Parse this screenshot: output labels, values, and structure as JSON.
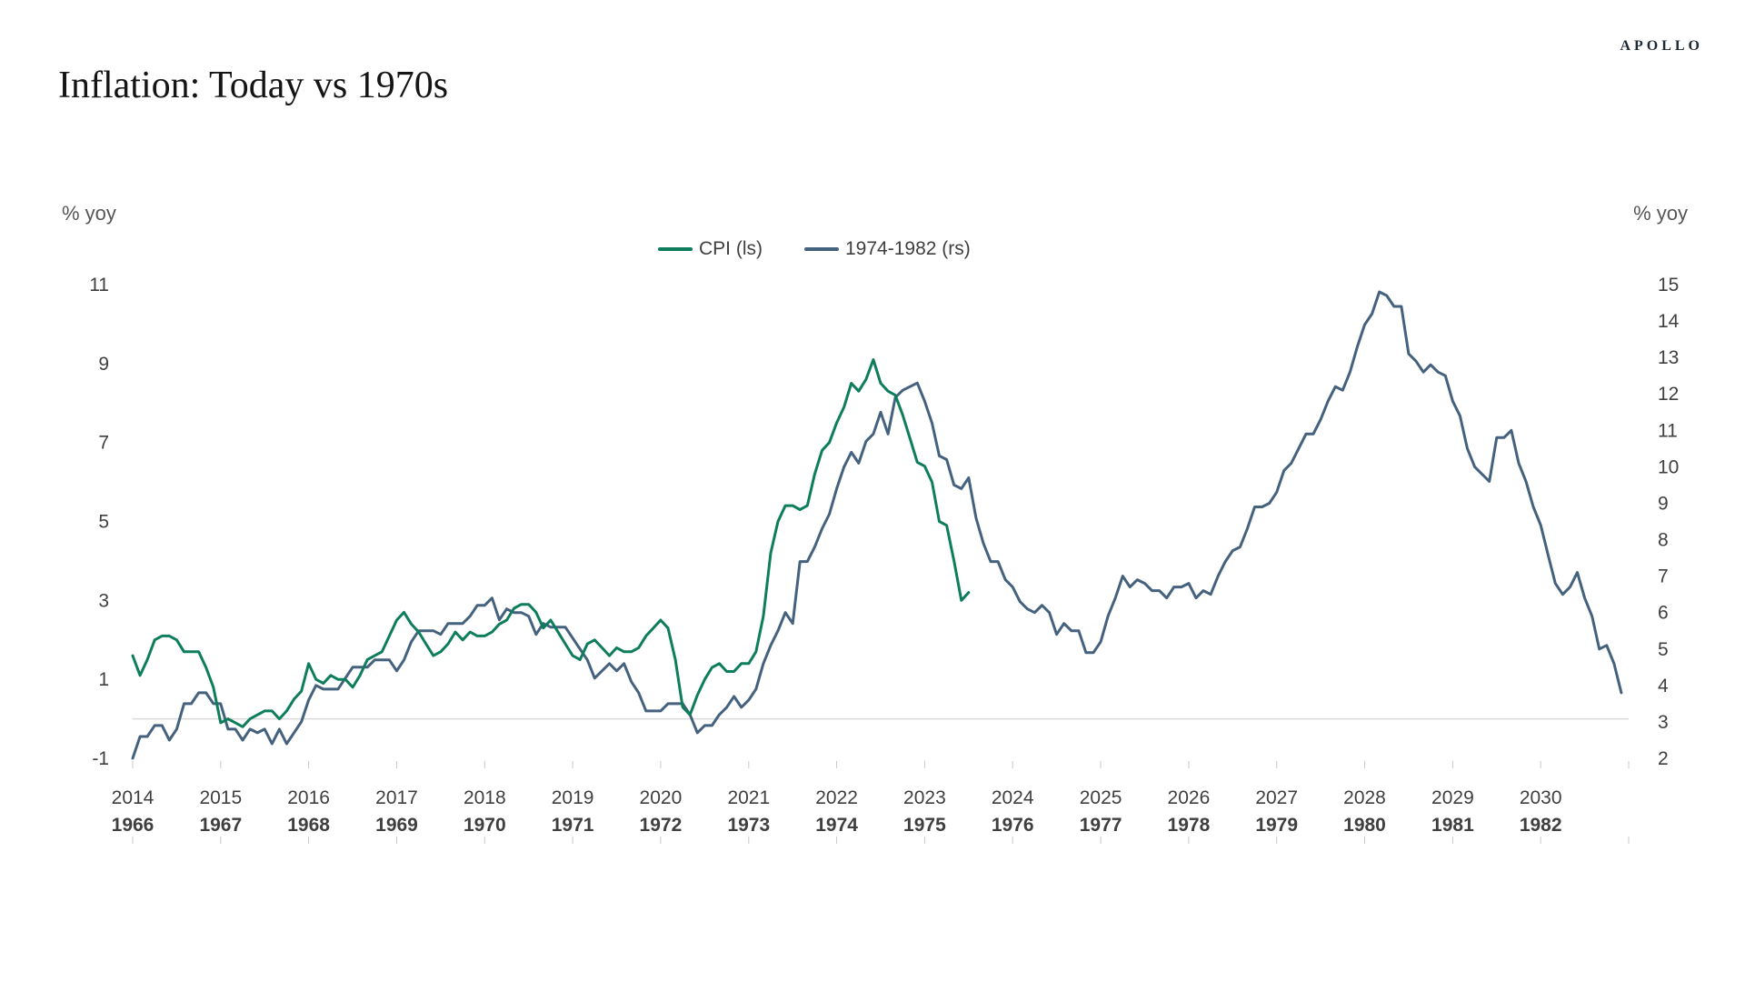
{
  "page": {
    "brand": "APOLLO",
    "title": "Inflation: Today vs 1970s"
  },
  "chart_data": {
    "type": "line",
    "title": "Inflation: Today vs 1970s",
    "grid": "off",
    "legend_position": "top-center",
    "left_axis": {
      "label": "% yoy",
      "min": -1,
      "max": 11,
      "ticks": [
        11,
        9,
        7,
        5,
        3,
        1,
        -1
      ]
    },
    "right_axis": {
      "label": "% yoy",
      "min": 2,
      "max": 15,
      "ticks": [
        15,
        14,
        13,
        12,
        11,
        10,
        9,
        8,
        7,
        6,
        5,
        4,
        3,
        2
      ]
    },
    "x_axis": {
      "span_years": 17,
      "primary_labels": [
        "2014",
        "2015",
        "2016",
        "2017",
        "2018",
        "2019",
        "2020",
        "2021",
        "2022",
        "2023",
        "2024",
        "2025",
        "2026",
        "2027",
        "2028",
        "2029",
        "2030"
      ],
      "secondary_labels": [
        "1966",
        "1967",
        "1968",
        "1969",
        "1970",
        "1971",
        "1972",
        "1973",
        "1974",
        "1975",
        "1976",
        "1977",
        "1978",
        "1979",
        "1980",
        "1981",
        "1982"
      ]
    },
    "series": [
      {
        "name": "CPI (ls)",
        "axis": "left",
        "color": "#0e7d5c",
        "start_year_offset": 0,
        "points_per_year": 12,
        "start_label": "2014-01",
        "values": [
          1.6,
          1.1,
          1.5,
          2.0,
          2.1,
          2.1,
          2.0,
          1.7,
          1.7,
          1.7,
          1.3,
          0.8,
          -0.1,
          0.0,
          -0.1,
          -0.2,
          0.0,
          0.1,
          0.2,
          0.2,
          0.0,
          0.2,
          0.5,
          0.7,
          1.4,
          1.0,
          0.9,
          1.1,
          1.0,
          1.0,
          0.8,
          1.1,
          1.5,
          1.6,
          1.7,
          2.1,
          2.5,
          2.7,
          2.4,
          2.2,
          1.9,
          1.6,
          1.7,
          1.9,
          2.2,
          2.0,
          2.2,
          2.1,
          2.1,
          2.2,
          2.4,
          2.5,
          2.8,
          2.9,
          2.9,
          2.7,
          2.3,
          2.5,
          2.2,
          1.9,
          1.6,
          1.5,
          1.9,
          2.0,
          1.8,
          1.6,
          1.8,
          1.7,
          1.7,
          1.8,
          2.1,
          2.3,
          2.5,
          2.3,
          1.5,
          0.3,
          0.1,
          0.6,
          1.0,
          1.3,
          1.4,
          1.2,
          1.2,
          1.4,
          1.4,
          1.7,
          2.6,
          4.2,
          5.0,
          5.4,
          5.4,
          5.3,
          5.4,
          6.2,
          6.8,
          7.0,
          7.5,
          7.9,
          8.5,
          8.3,
          8.6,
          9.1,
          8.5,
          8.3,
          8.2,
          7.7,
          7.1,
          6.5,
          6.4,
          6.0,
          5.0,
          4.9,
          4.0,
          3.0,
          3.2
        ]
      },
      {
        "name": "1974-1982 (rs)",
        "axis": "right",
        "color": "#44617e",
        "start_year_offset": 0,
        "points_per_year": 12,
        "start_label": "1966-01",
        "values": [
          2.0,
          2.6,
          2.6,
          2.9,
          2.9,
          2.5,
          2.8,
          3.5,
          3.5,
          3.8,
          3.8,
          3.5,
          3.5,
          2.8,
          2.8,
          2.5,
          2.8,
          2.7,
          2.8,
          2.4,
          2.8,
          2.4,
          2.7,
          3.0,
          3.6,
          4.0,
          3.9,
          3.9,
          3.9,
          4.2,
          4.5,
          4.5,
          4.5,
          4.7,
          4.7,
          4.7,
          4.4,
          4.7,
          5.2,
          5.5,
          5.5,
          5.5,
          5.4,
          5.7,
          5.7,
          5.7,
          5.9,
          6.2,
          6.2,
          6.4,
          5.8,
          6.1,
          6.0,
          6.0,
          5.9,
          5.4,
          5.7,
          5.6,
          5.6,
          5.6,
          5.3,
          5.0,
          4.7,
          4.2,
          4.4,
          4.6,
          4.4,
          4.6,
          4.1,
          3.8,
          3.3,
          3.3,
          3.3,
          3.5,
          3.5,
          3.5,
          3.2,
          2.7,
          2.9,
          2.9,
          3.2,
          3.4,
          3.7,
          3.4,
          3.6,
          3.9,
          4.6,
          5.1,
          5.5,
          6.0,
          5.7,
          7.4,
          7.4,
          7.8,
          8.3,
          8.7,
          9.4,
          10.0,
          10.4,
          10.1,
          10.7,
          10.9,
          11.5,
          10.9,
          11.9,
          12.1,
          12.2,
          12.3,
          11.8,
          11.2,
          10.3,
          10.2,
          9.5,
          9.4,
          9.7,
          8.6,
          7.9,
          7.4,
          7.4,
          6.9,
          6.7,
          6.3,
          6.1,
          6.0,
          6.2,
          6.0,
          5.4,
          5.7,
          5.5,
          5.5,
          4.9,
          4.9,
          5.2,
          5.9,
          6.4,
          7.0,
          6.7,
          6.9,
          6.8,
          6.6,
          6.6,
          6.4,
          6.7,
          6.7,
          6.8,
          6.4,
          6.6,
          6.5,
          7.0,
          7.4,
          7.7,
          7.8,
          8.3,
          8.9,
          8.9,
          9.0,
          9.3,
          9.9,
          10.1,
          10.5,
          10.9,
          10.9,
          11.3,
          11.8,
          12.2,
          12.1,
          12.6,
          13.3,
          13.9,
          14.2,
          14.8,
          14.7,
          14.4,
          14.4,
          13.1,
          12.9,
          12.6,
          12.8,
          12.6,
          12.5,
          11.8,
          11.4,
          10.5,
          10.0,
          9.8,
          9.6,
          10.8,
          10.8,
          11.0,
          10.1,
          9.6,
          8.9,
          8.4,
          7.6,
          6.8,
          6.5,
          6.7,
          7.1,
          6.4,
          5.9,
          5.0,
          5.1,
          4.6,
          3.8
        ]
      }
    ]
  }
}
